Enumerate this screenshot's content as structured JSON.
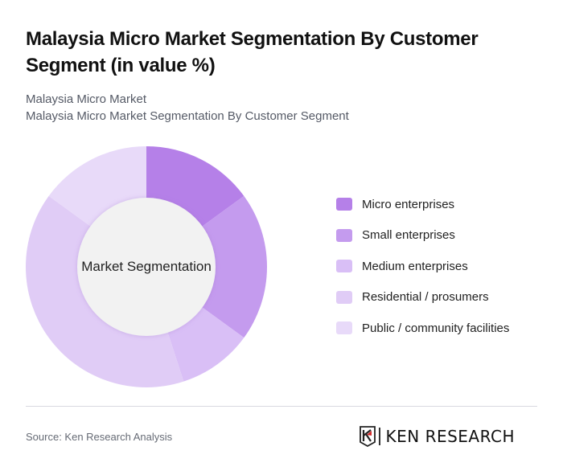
{
  "header": {
    "title": "Malaysia Micro Market Segmentation By Customer Segment (in value %)",
    "subtitle_line1": "Malaysia Micro Market",
    "subtitle_line2": "Malaysia Micro Market Segmentation By Customer Segment"
  },
  "chart": {
    "center_label": "Market Segmentation"
  },
  "legend": {
    "items": [
      {
        "label": "Micro enterprises",
        "color": "#b580e8"
      },
      {
        "label": "Small enterprises",
        "color": "#c49bee"
      },
      {
        "label": "Medium enterprises",
        "color": "#d9bff6"
      },
      {
        "label": "Residential / prosumers",
        "color": "#e0ccf6"
      },
      {
        "label": "Public / community facilities",
        "color": "#e8daf9"
      }
    ]
  },
  "footer": {
    "source": "Source: Ken Research Analysis",
    "logo_text": "KEN RESEARCH"
  },
  "chart_data": {
    "type": "pie",
    "subtype": "donut",
    "title": "Malaysia Micro Market Segmentation By Customer Segment (in value %)",
    "center_label": "Market Segmentation",
    "categories": [
      "Micro enterprises",
      "Small enterprises",
      "Medium enterprises",
      "Residential / prosumers",
      "Public / community facilities"
    ],
    "values": [
      15,
      20,
      10,
      40,
      15
    ],
    "colors": [
      "#b580e8",
      "#c49bee",
      "#d9bff6",
      "#e0ccf6",
      "#e8daf9"
    ],
    "unit": "%",
    "legend_position": "right"
  }
}
